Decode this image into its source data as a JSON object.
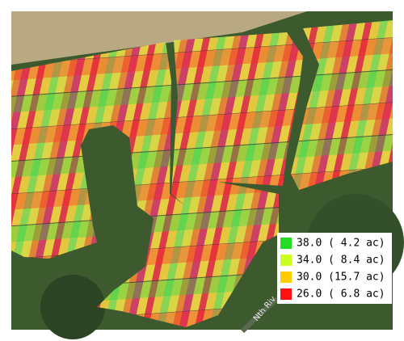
{
  "map": {
    "road_label": "Nth Riv"
  },
  "legend": {
    "items": [
      {
        "label": "38.0 ( 4.2 ac)",
        "color": "#22dd22"
      },
      {
        "label": "34.0 ( 8.4 ac)",
        "color": "#ccff22"
      },
      {
        "label": "30.0 (15.7 ac)",
        "color": "#ffcc00"
      },
      {
        "label": "26.0 ( 6.8 ac)",
        "color": "#ff1111"
      }
    ]
  }
}
